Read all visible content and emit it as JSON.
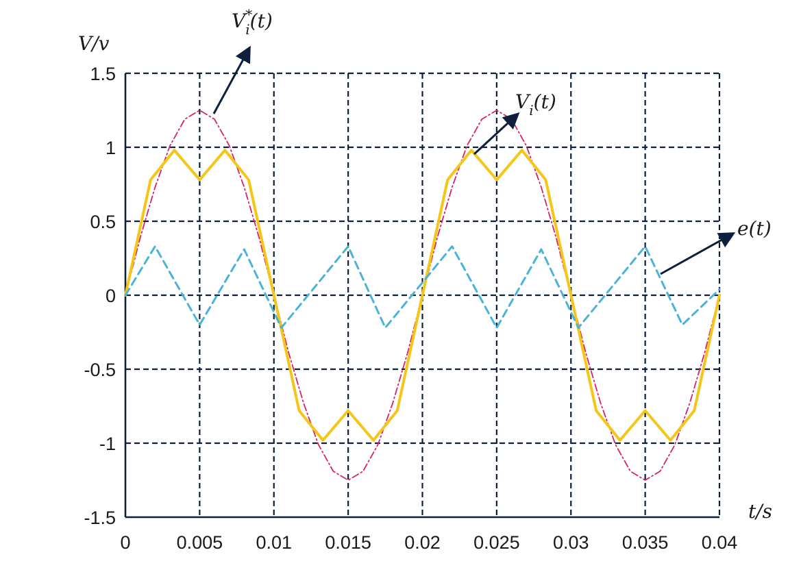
{
  "chart_data": {
    "type": "line",
    "xlabel": "t/s",
    "ylabel": "V/v",
    "xlim": [
      0,
      0.04
    ],
    "ylim": [
      -1.5,
      1.5
    ],
    "grid": true,
    "x_ticks": [
      "0",
      "0.005",
      "0.01",
      "0.015",
      "0.02",
      "0.025",
      "0.03",
      "0.035",
      "0.04"
    ],
    "y_ticks": [
      "1.5",
      "1",
      "0.5",
      "0",
      "-0.5",
      "-1",
      "-1.5"
    ],
    "x_tick_values": [
      0,
      0.005,
      0.01,
      0.015,
      0.02,
      0.025,
      0.03,
      0.035,
      0.04
    ],
    "y_tick_values": [
      1.5,
      1,
      0.5,
      0,
      -0.5,
      -1,
      -1.5
    ],
    "series": [
      {
        "name": "V_i*(t)",
        "color": "#d6226b",
        "style": "dashdot",
        "x": [
          0,
          0.001,
          0.002,
          0.003,
          0.004,
          0.005,
          0.006,
          0.007,
          0.008,
          0.009,
          0.01,
          0.011,
          0.012,
          0.013,
          0.014,
          0.015,
          0.016,
          0.017,
          0.018,
          0.019,
          0.02,
          0.021,
          0.022,
          0.023,
          0.024,
          0.025,
          0.026,
          0.027,
          0.028,
          0.029,
          0.03,
          0.031,
          0.032,
          0.033,
          0.034,
          0.035,
          0.036,
          0.037,
          0.038,
          0.039,
          0.04
        ],
        "y": [
          0,
          0.39,
          0.73,
          1.01,
          1.19,
          1.25,
          1.19,
          1.01,
          0.73,
          0.39,
          0,
          -0.39,
          -0.73,
          -1.01,
          -1.19,
          -1.25,
          -1.19,
          -1.01,
          -0.73,
          -0.39,
          0,
          0.39,
          0.73,
          1.01,
          1.19,
          1.25,
          1.19,
          1.01,
          0.73,
          0.39,
          0,
          -0.39,
          -0.73,
          -1.01,
          -1.19,
          -1.25,
          -1.19,
          -1.01,
          -0.73,
          -0.39,
          0
        ]
      },
      {
        "name": "V_i(t)",
        "color": "#f5c518",
        "style": "solid",
        "x": [
          0,
          0.0017,
          0.0033,
          0.005,
          0.0067,
          0.0083,
          0.01,
          0.0117,
          0.0133,
          0.015,
          0.0167,
          0.0183,
          0.02,
          0.0217,
          0.0233,
          0.025,
          0.0267,
          0.0283,
          0.03,
          0.0317,
          0.0333,
          0.035,
          0.0367,
          0.0383,
          0.04
        ],
        "y": [
          0,
          0.78,
          0.98,
          0.78,
          0.98,
          0.78,
          0,
          -0.78,
          -0.98,
          -0.78,
          -0.98,
          -0.78,
          0,
          0.78,
          0.98,
          0.78,
          0.98,
          0.78,
          0,
          -0.78,
          -0.98,
          -0.78,
          -0.98,
          -0.78,
          0
        ]
      },
      {
        "name": "e(t)",
        "color": "#4bb2d8",
        "style": "dashed",
        "x": [
          0,
          0.002,
          0.005,
          0.008,
          0.0105,
          0.015,
          0.0175,
          0.022,
          0.025,
          0.028,
          0.0305,
          0.035,
          0.0375,
          0.04
        ],
        "y": [
          0,
          0.33,
          -0.2,
          0.31,
          -0.22,
          0.33,
          -0.22,
          0.33,
          -0.22,
          0.31,
          -0.22,
          0.33,
          -0.2,
          0.04
        ]
      }
    ],
    "annotations": [
      {
        "text": "V_i*(t)",
        "target_series": "V_i*(t)"
      },
      {
        "text": "V_i(t)",
        "target_series": "V_i(t)"
      },
      {
        "text": "e(t)",
        "target_series": "e(t)"
      }
    ]
  }
}
